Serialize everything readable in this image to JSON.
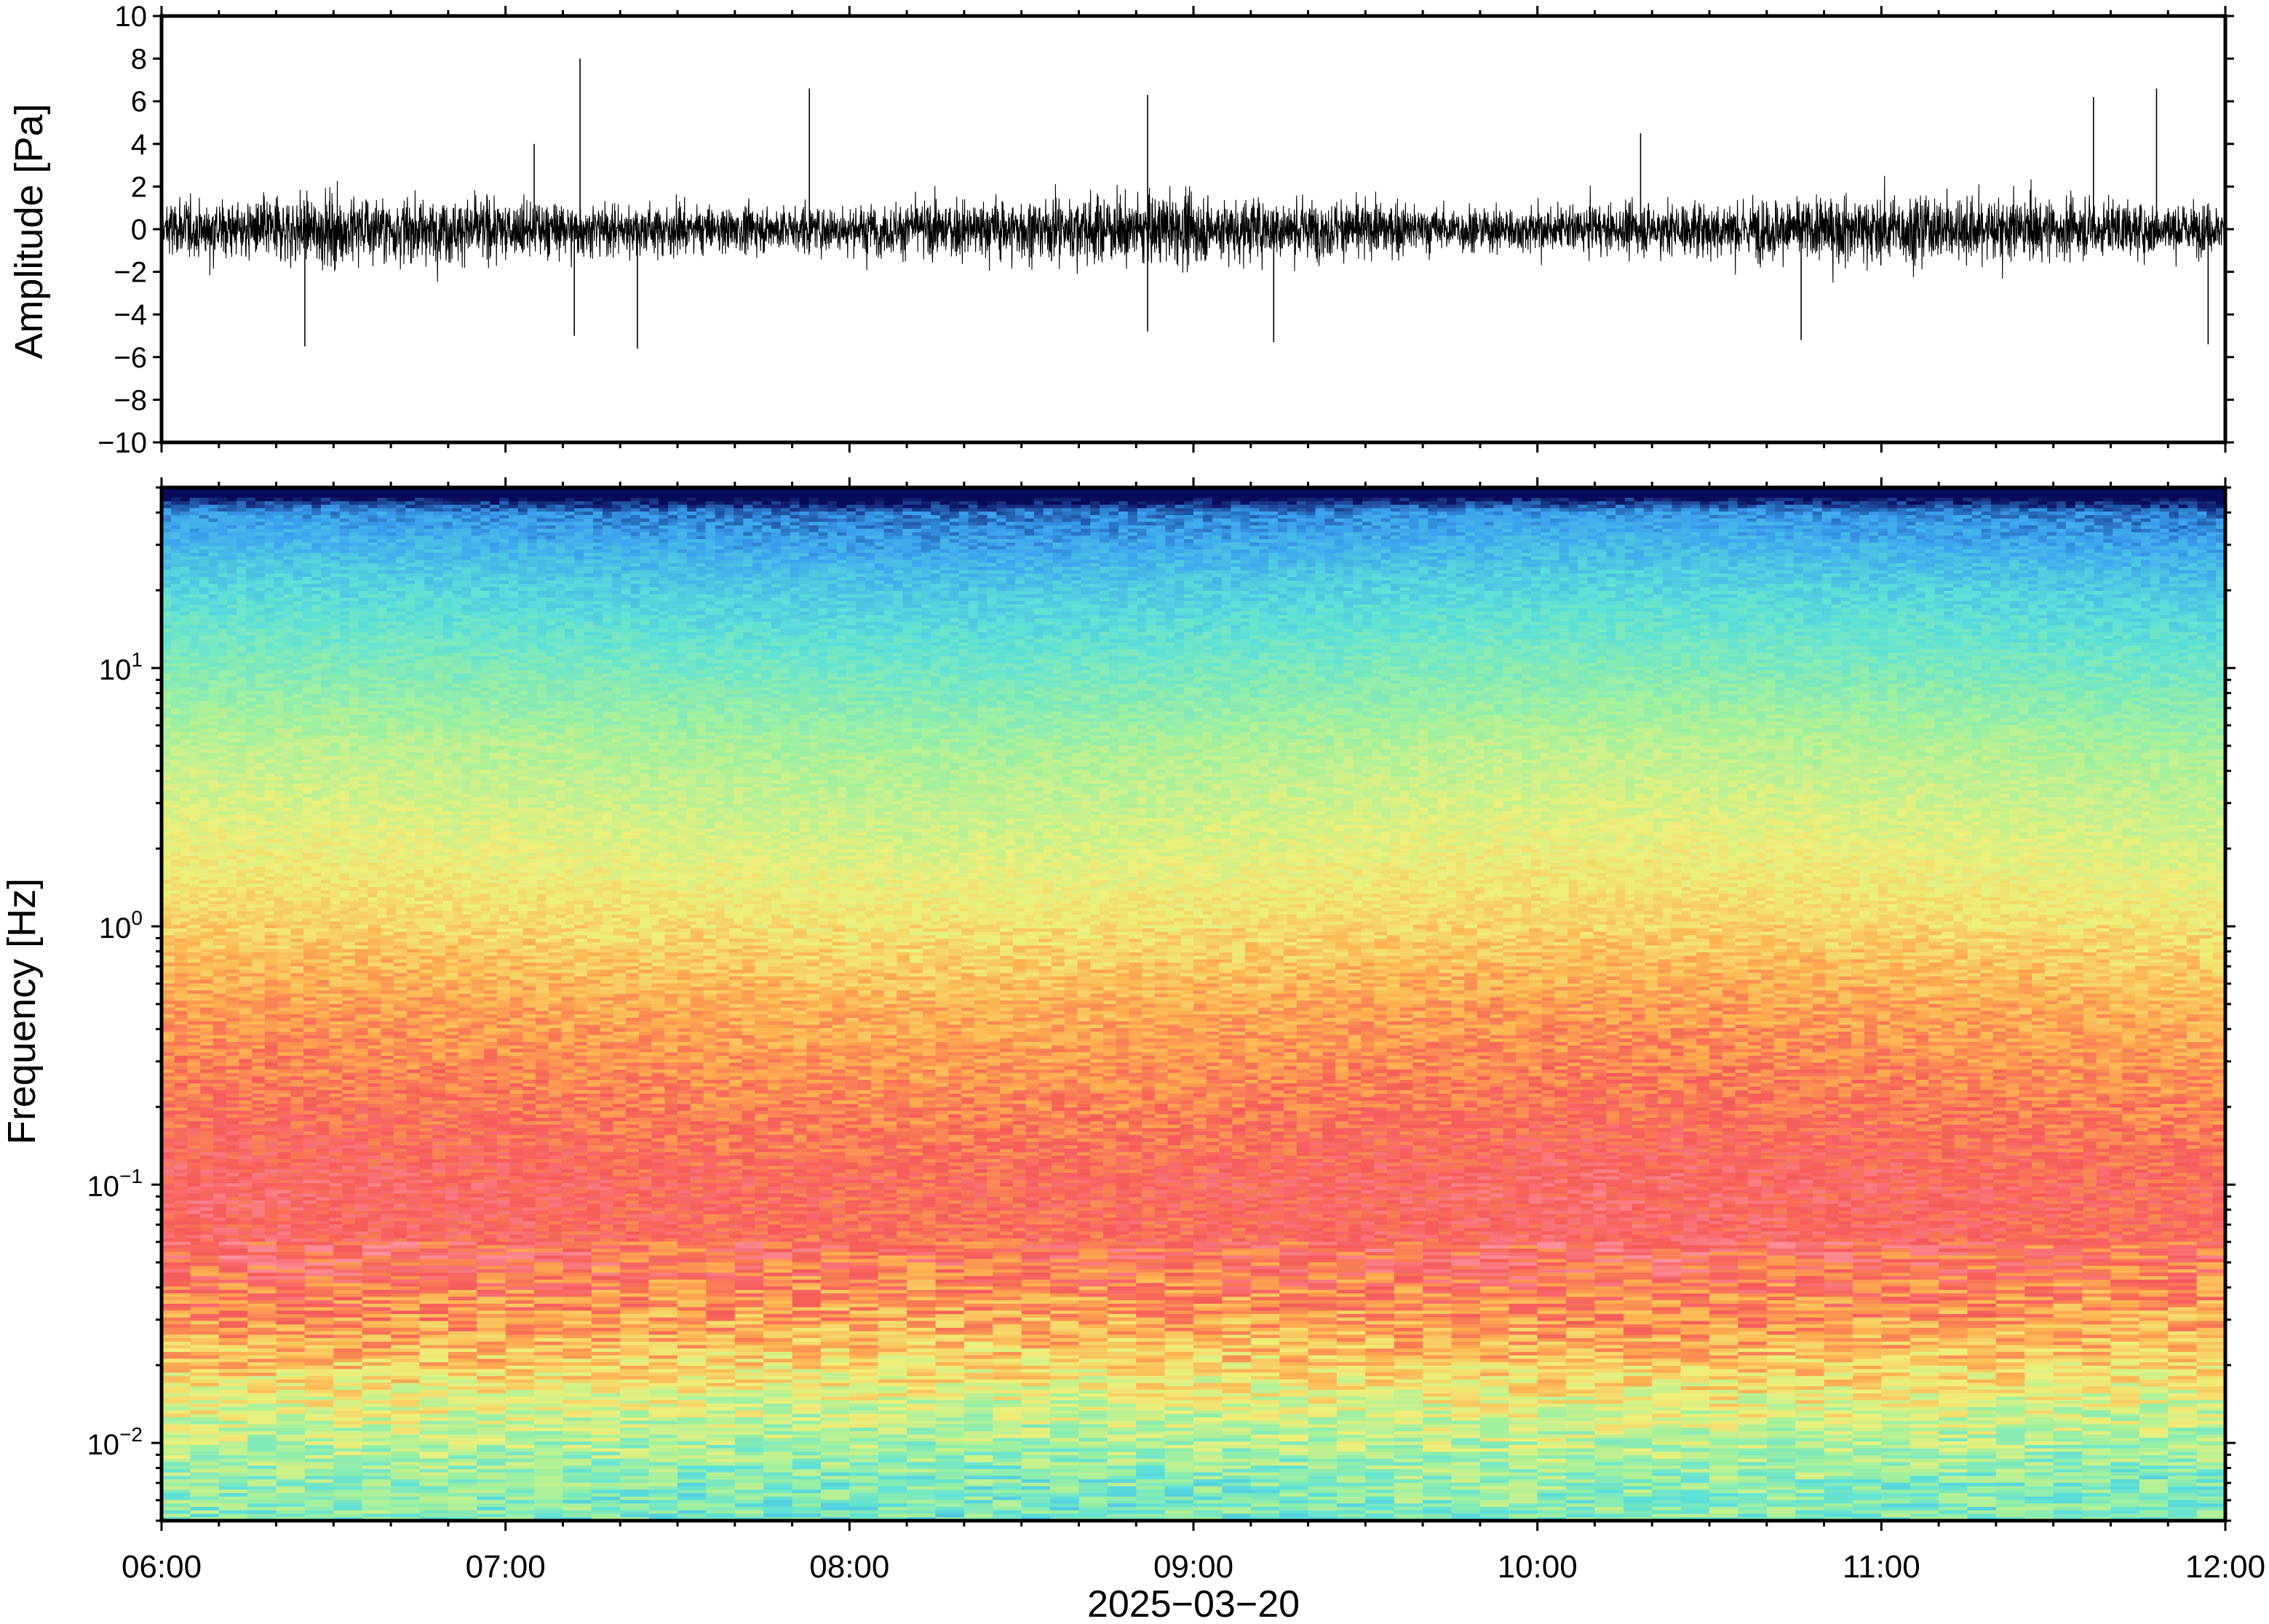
{
  "chart_data": [
    {
      "type": "line",
      "panel": "waveform",
      "ylabel": "Amplitude [Pa]",
      "ylim": [
        -10,
        10
      ],
      "yticks": [
        -10,
        -8,
        -6,
        -4,
        -2,
        0,
        2,
        4,
        6,
        8,
        10
      ],
      "ytick_labels": [
        "−10",
        "−8",
        "−6",
        "−4",
        "−2",
        "0",
        "2",
        "4",
        "6",
        "8",
        "10"
      ],
      "xlim": [
        "2025-03-20 06:00",
        "2025-03-20 12:00"
      ],
      "grid": false,
      "noise_envelope": {
        "typical_peak": 2.5,
        "max": 8.0,
        "min": -5.6
      },
      "peaks": [
        {
          "x": "2025-03-20 07:13",
          "y": 8.0
        },
        {
          "x": "2025-03-20 07:53",
          "y": 6.6
        },
        {
          "x": "2025-03-20 08:52",
          "y": 6.3
        },
        {
          "x": "2025-03-20 11:48",
          "y": 6.6
        },
        {
          "x": "2025-03-20 11:37",
          "y": 6.2
        },
        {
          "x": "2025-03-20 07:05",
          "y": 4.0
        },
        {
          "x": "2025-03-20 10:18",
          "y": 4.5
        }
      ],
      "troughs": [
        {
          "x": "2025-03-20 06:25",
          "y": -5.5
        },
        {
          "x": "2025-03-20 07:12",
          "y": -5.0
        },
        {
          "x": "2025-03-20 07:23",
          "y": -5.6
        },
        {
          "x": "2025-03-20 08:52",
          "y": -4.8
        },
        {
          "x": "2025-03-20 09:14",
          "y": -5.3
        },
        {
          "x": "2025-03-20 10:46",
          "y": -5.2
        },
        {
          "x": "2025-03-20 11:57",
          "y": -5.4
        }
      ]
    },
    {
      "type": "heatmap",
      "panel": "spectrogram",
      "ylabel": "Frequency [Hz]",
      "xlabel": "2025−03−20",
      "yscale": "log",
      "ylim": [
        0.005,
        50
      ],
      "yticks": [
        0.01,
        0.1,
        1,
        10
      ],
      "ytick_labels": [
        {
          "base": "10",
          "exp": "−2"
        },
        {
          "base": "10",
          "exp": "−1"
        },
        {
          "base": "10",
          "exp": "0"
        },
        {
          "base": "10",
          "exp": "1"
        }
      ],
      "x_ticks": [
        "06:00",
        "07:00",
        "08:00",
        "09:00",
        "10:00",
        "11:00",
        "12:00"
      ],
      "colormap": "rainbow",
      "color_stops": [
        "#0a0a5a",
        "#3aa0f0",
        "#5ce0d8",
        "#9ef0a0",
        "#eef07a",
        "#ffb050",
        "#f55a5a",
        "#ff9aa8"
      ],
      "bands": [
        {
          "freq": 45,
          "level": 0.0
        },
        {
          "freq": 40,
          "level": 0.12
        },
        {
          "freq": 20,
          "level": 0.25
        },
        {
          "freq": 10,
          "level": 0.35
        },
        {
          "freq": 5,
          "level": 0.46
        },
        {
          "freq": 2,
          "level": 0.55
        },
        {
          "freq": 1,
          "level": 0.62
        },
        {
          "freq": 0.5,
          "level": 0.72
        },
        {
          "freq": 0.2,
          "level": 0.8
        },
        {
          "freq": 0.1,
          "level": 0.86
        },
        {
          "freq": 0.05,
          "level": 0.84
        },
        {
          "freq": 0.025,
          "level": 0.7
        },
        {
          "freq": 0.012,
          "level": 0.5
        },
        {
          "freq": 0.007,
          "level": 0.38
        },
        {
          "freq": 0.005,
          "level": 0.36
        }
      ]
    }
  ]
}
